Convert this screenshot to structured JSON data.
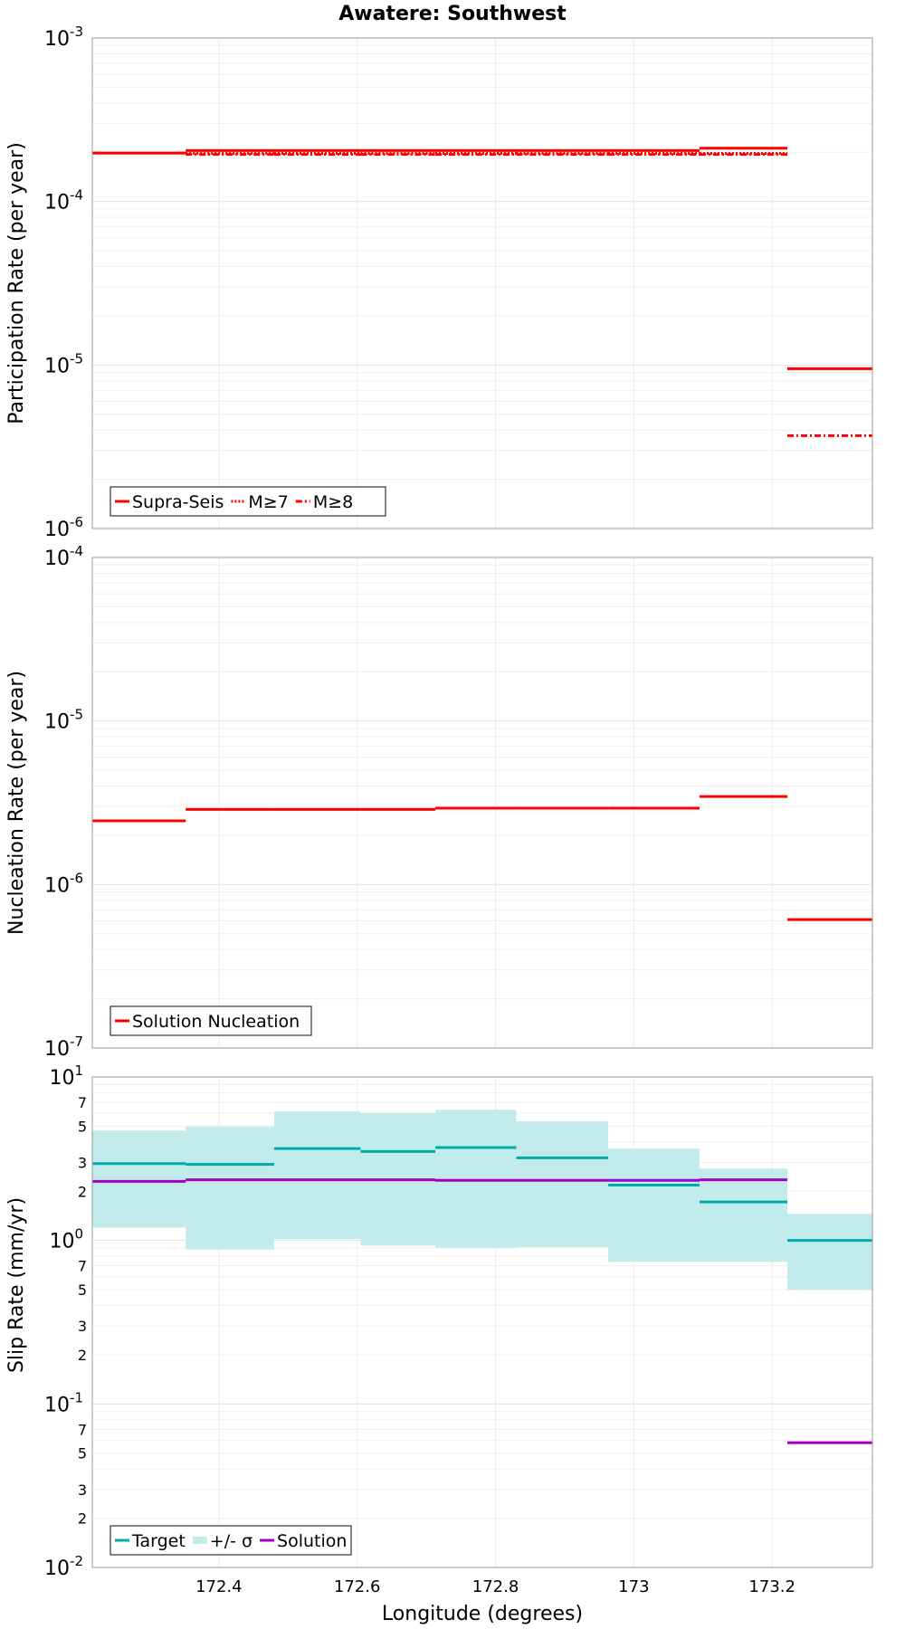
{
  "chart_data": [
    {
      "type": "line",
      "title": "Awatere: Southwest",
      "xlabel": "",
      "ylabel": "Participation Rate (per year)",
      "yscale": "log",
      "ylim": [
        1e-06,
        0.001
      ],
      "xlim": [
        172.217,
        173.345
      ],
      "grid": true,
      "legend_position": "bottom-left",
      "ytick_labels": [
        {
          "base": "10",
          "exp": "-6",
          "value": 1e-06
        },
        {
          "base": "10",
          "exp": "-5",
          "value": 1e-05
        },
        {
          "base": "10",
          "exp": "-4",
          "value": 0.0001
        },
        {
          "base": "10",
          "exp": "-3",
          "value": 0.001
        }
      ],
      "x_edges": [
        172.217,
        172.352,
        172.48,
        172.605,
        172.713,
        172.83,
        172.963,
        173.095,
        173.222,
        173.345
      ],
      "series": [
        {
          "name": "Supra-Seis",
          "color": "#ff0000",
          "dash": "solid",
          "values": [
            0.000198,
            0.000205,
            0.000205,
            0.000205,
            0.000205,
            0.000205,
            0.000205,
            0.000212,
            9.5e-06
          ]
        },
        {
          "name": "M≥7",
          "color": "#ff0000",
          "dash": "dotted",
          "values": [
            0.000198,
            0.000197,
            0.000197,
            0.000197,
            0.000197,
            0.000197,
            0.000197,
            0.000197,
            9.5e-06
          ]
        },
        {
          "name": "M≥8",
          "color": "#ff0000",
          "dash": "dashdot",
          "values": [
            null,
            0.000194,
            0.000194,
            0.000194,
            0.000194,
            0.000194,
            0.000194,
            0.000194,
            3.7e-06
          ]
        }
      ]
    },
    {
      "type": "line",
      "title": "",
      "xlabel": "",
      "ylabel": "Nucleation Rate (per year)",
      "yscale": "log",
      "ylim": [
        1e-07,
        0.0001
      ],
      "xlim": [
        172.217,
        173.345
      ],
      "grid": true,
      "legend_position": "bottom-left",
      "ytick_labels": [
        {
          "base": "10",
          "exp": "-7",
          "value": 1e-07
        },
        {
          "base": "10",
          "exp": "-6",
          "value": 1e-06
        },
        {
          "base": "10",
          "exp": "-5",
          "value": 1e-05
        },
        {
          "base": "10",
          "exp": "-4",
          "value": 0.0001
        }
      ],
      "x_edges": [
        172.217,
        172.352,
        172.48,
        172.605,
        172.713,
        172.83,
        172.963,
        173.095,
        173.222,
        173.345
      ],
      "series": [
        {
          "name": "Solution Nucleation",
          "color": "#ff0000",
          "dash": "solid",
          "values": [
            2.45e-06,
            2.88e-06,
            2.88e-06,
            2.88e-06,
            2.93e-06,
            2.93e-06,
            2.93e-06,
            3.45e-06,
            6.1e-07
          ]
        }
      ]
    },
    {
      "type": "line",
      "title": "",
      "xlabel": "Longitude (degrees)",
      "ylabel": "Slip Rate (mm/yr)",
      "yscale": "log",
      "ylim": [
        0.01,
        10
      ],
      "xlim": [
        172.217,
        173.345
      ],
      "grid": true,
      "legend_position": "bottom-left",
      "ytick_labels": [
        {
          "base": "10",
          "exp": "-2",
          "value": 0.01
        },
        {
          "base": "10",
          "exp": "-1",
          "value": 0.1
        },
        {
          "base": "10",
          "exp": "0",
          "value": 1
        },
        {
          "base": "10",
          "exp": "1",
          "value": 10
        }
      ],
      "minor_tick_labels": [
        {
          "label": "2",
          "value": 0.02
        },
        {
          "label": "3",
          "value": 0.03
        },
        {
          "label": "5",
          "value": 0.05
        },
        {
          "label": "7",
          "value": 0.07
        },
        {
          "label": "2",
          "value": 0.2
        },
        {
          "label": "3",
          "value": 0.3
        },
        {
          "label": "5",
          "value": 0.5
        },
        {
          "label": "7",
          "value": 0.7
        },
        {
          "label": "2",
          "value": 2
        },
        {
          "label": "3",
          "value": 3
        },
        {
          "label": "5",
          "value": 5
        },
        {
          "label": "7",
          "value": 7
        }
      ],
      "xticks": [
        {
          "label": "172.4",
          "value": 172.4
        },
        {
          "label": "172.6",
          "value": 172.6
        },
        {
          "label": "172.8",
          "value": 172.8
        },
        {
          "label": "173",
          "value": 173.0
        },
        {
          "label": "173.2",
          "value": 173.2
        }
      ],
      "x_edges": [
        172.217,
        172.352,
        172.48,
        172.605,
        172.713,
        172.83,
        172.963,
        173.095,
        173.222,
        173.345
      ],
      "band": {
        "name": "+/- σ",
        "color": "#c2ecec",
        "lower": [
          1.2,
          0.88,
          1.02,
          0.93,
          0.9,
          0.91,
          0.74,
          0.74,
          0.5
        ],
        "upper": [
          4.7,
          4.95,
          6.15,
          6.0,
          6.3,
          5.35,
          3.65,
          2.75,
          1.45
        ]
      },
      "series": [
        {
          "name": "Target",
          "color": "#00aaaa",
          "dash": "solid",
          "values": [
            2.95,
            2.92,
            3.65,
            3.5,
            3.7,
            3.2,
            2.18,
            1.72,
            1.0
          ]
        },
        {
          "name": "Solution",
          "color": "#a000c8",
          "dash": "solid",
          "values": [
            2.3,
            2.35,
            2.35,
            2.35,
            2.33,
            2.33,
            2.33,
            2.35,
            0.058
          ]
        }
      ]
    }
  ]
}
